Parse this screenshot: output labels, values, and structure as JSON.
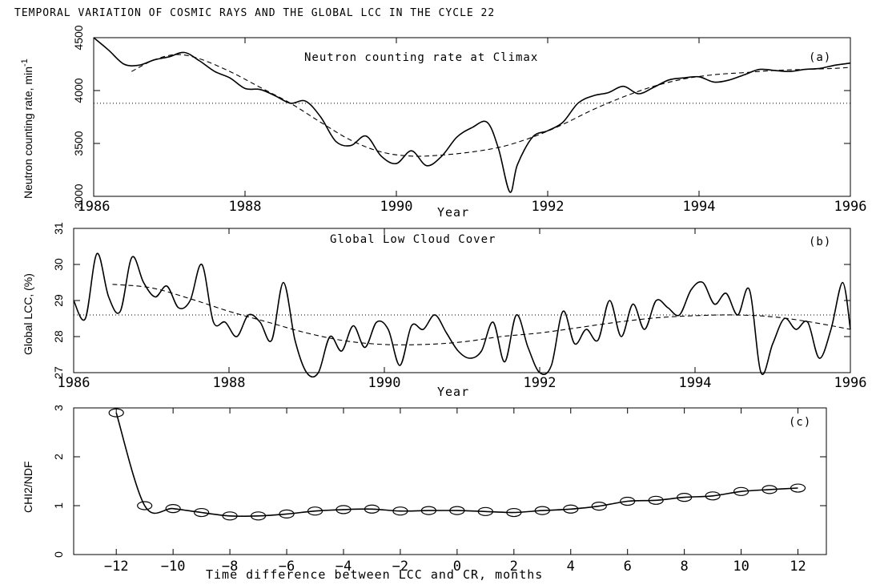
{
  "title": "TEMPORAL VARIATION OF COSMIC RAYS AND THE GLOBAL LCC IN THE CYCLE 22",
  "chart_data": [
    {
      "id": "a",
      "type": "line",
      "panel_label": "(a)",
      "annotation": "Neutron counting rate at Climax",
      "xlabel": "Year",
      "ylabel": "Neutron counting rate, min",
      "ylabel_sup": "-1",
      "xlim": [
        1986,
        1996
      ],
      "ylim": [
        3000,
        4500
      ],
      "xticks": [
        1986,
        1988,
        1990,
        1992,
        1994,
        1996
      ],
      "yticks": [
        3000,
        3500,
        4000,
        4500
      ],
      "reference_line": 3880,
      "series": [
        {
          "style": "solid",
          "x": [
            1986.0,
            1986.2,
            1986.4,
            1986.6,
            1986.8,
            1987.0,
            1987.2,
            1987.4,
            1987.6,
            1987.8,
            1988.0,
            1988.2,
            1988.4,
            1988.6,
            1988.8,
            1989.0,
            1989.2,
            1989.4,
            1989.6,
            1989.8,
            1990.0,
            1990.2,
            1990.4,
            1990.6,
            1990.8,
            1991.0,
            1991.2,
            1991.35,
            1991.5,
            1991.6,
            1991.8,
            1992.0,
            1992.2,
            1992.4,
            1992.6,
            1992.8,
            1993.0,
            1993.2,
            1993.4,
            1993.6,
            1993.8,
            1994.0,
            1994.2,
            1994.4,
            1994.6,
            1994.8,
            1995.0,
            1995.2,
            1995.4,
            1995.6,
            1995.8,
            1996.0
          ],
          "y": [
            4500,
            4380,
            4250,
            4240,
            4290,
            4320,
            4360,
            4280,
            4180,
            4120,
            4020,
            4010,
            3950,
            3880,
            3900,
            3750,
            3520,
            3480,
            3570,
            3380,
            3310,
            3430,
            3290,
            3380,
            3560,
            3650,
            3700,
            3450,
            3040,
            3300,
            3560,
            3620,
            3700,
            3880,
            3950,
            3980,
            4040,
            3970,
            4030,
            4100,
            4120,
            4130,
            4080,
            4100,
            4150,
            4200,
            4190,
            4180,
            4200,
            4210,
            4240,
            4260
          ]
        },
        {
          "style": "dashed",
          "x": [
            1986.5,
            1986.8,
            1987.1,
            1987.4,
            1987.8,
            1988.2,
            1988.6,
            1989.0,
            1989.4,
            1989.8,
            1990.2,
            1990.6,
            1991.0,
            1991.4,
            1991.8,
            1992.2,
            1992.6,
            1993.0,
            1993.4,
            1993.8,
            1994.2,
            1994.6,
            1995.0,
            1995.4,
            1995.8,
            1996.0
          ],
          "y": [
            4180,
            4290,
            4340,
            4300,
            4180,
            4030,
            3880,
            3700,
            3530,
            3420,
            3380,
            3390,
            3420,
            3470,
            3560,
            3680,
            3820,
            3940,
            4040,
            4110,
            4150,
            4170,
            4190,
            4200,
            4210,
            4220
          ]
        }
      ]
    },
    {
      "id": "b",
      "type": "line",
      "panel_label": "(b)",
      "annotation": "Global Low Cloud Cover",
      "xlabel": "Year",
      "ylabel": "Global LCC, (%)",
      "xlim": [
        1986,
        1996
      ],
      "ylim": [
        27,
        31
      ],
      "xticks": [
        1986,
        1988,
        1990,
        1992,
        1994,
        1996
      ],
      "yticks": [
        27,
        28,
        29,
        30,
        31
      ],
      "reference_line": 28.6,
      "series": [
        {
          "style": "solid",
          "x": [
            1986.0,
            1986.15,
            1986.3,
            1986.45,
            1986.6,
            1986.75,
            1986.9,
            1987.05,
            1987.2,
            1987.35,
            1987.5,
            1987.65,
            1987.8,
            1987.95,
            1988.1,
            1988.25,
            1988.4,
            1988.55,
            1988.7,
            1988.85,
            1989.0,
            1989.15,
            1989.3,
            1989.45,
            1989.6,
            1989.75,
            1989.9,
            1990.05,
            1990.2,
            1990.35,
            1990.5,
            1990.65,
            1990.8,
            1990.95,
            1991.1,
            1991.25,
            1991.4,
            1991.55,
            1991.7,
            1991.85,
            1992.0,
            1992.15,
            1992.3,
            1992.45,
            1992.6,
            1992.75,
            1992.9,
            1993.05,
            1993.2,
            1993.35,
            1993.5,
            1993.65,
            1993.8,
            1993.95,
            1994.1,
            1994.25,
            1994.4,
            1994.55,
            1994.7,
            1994.85,
            1995.0,
            1995.15,
            1995.3,
            1995.45,
            1995.6,
            1995.75,
            1995.9,
            1996.0
          ],
          "y": [
            29.0,
            28.5,
            30.3,
            29.1,
            28.7,
            30.2,
            29.5,
            29.1,
            29.4,
            28.8,
            29.0,
            30.0,
            28.4,
            28.4,
            28.0,
            28.6,
            28.4,
            27.9,
            29.5,
            27.9,
            27.0,
            26.7,
            28.0,
            27.6,
            28.3,
            27.7,
            28.4,
            28.2,
            27.2,
            28.3,
            28.2,
            28.6,
            28.1,
            27.6,
            27.4,
            27.6,
            28.4,
            27.3,
            28.6,
            27.7,
            27.0,
            27.2,
            28.7,
            27.8,
            28.2,
            27.9,
            29.0,
            28.0,
            28.9,
            28.2,
            29.0,
            28.8,
            28.6,
            29.3,
            29.5,
            28.9,
            29.2,
            28.6,
            29.3,
            27.0,
            27.8,
            28.5,
            28.2,
            28.4,
            27.4,
            28.2,
            29.5,
            28.2
          ]
        },
        {
          "style": "dashed",
          "x": [
            1986.5,
            1987.0,
            1987.5,
            1988.0,
            1988.5,
            1989.0,
            1989.5,
            1990.0,
            1990.5,
            1991.0,
            1991.5,
            1992.0,
            1992.5,
            1993.0,
            1993.5,
            1994.0,
            1994.5,
            1995.0,
            1995.5,
            1996.0
          ],
          "y": [
            29.45,
            29.35,
            29.05,
            28.7,
            28.4,
            28.1,
            27.88,
            27.78,
            27.78,
            27.85,
            28.0,
            28.1,
            28.25,
            28.4,
            28.52,
            28.58,
            28.6,
            28.55,
            28.4,
            28.2
          ]
        }
      ]
    },
    {
      "id": "c",
      "type": "scatter",
      "panel_label": "(c)",
      "xlabel": "Time difference between LCC and CR, months",
      "ylabel": "CHI2/NDF",
      "xlim": [
        -13.5,
        13
      ],
      "ylim": [
        0,
        3
      ],
      "xticks": [
        -12,
        -10,
        -8,
        -6,
        -4,
        -2,
        0,
        2,
        4,
        6,
        8,
        10,
        12
      ],
      "xtick_labels": [
        "−12",
        "−10",
        "−8",
        "−6",
        "−4",
        "−2",
        "0",
        "2",
        "4",
        "6",
        "8",
        "10",
        "12"
      ],
      "yticks": [
        0,
        1,
        2,
        3
      ],
      "series": [
        {
          "style": "points-with-curve",
          "x": [
            -12,
            -11,
            -10,
            -9,
            -8,
            -7,
            -6,
            -5,
            -4,
            -3,
            -2,
            -1,
            0,
            1,
            2,
            3,
            4,
            5,
            6,
            7,
            8,
            9,
            10,
            11,
            12
          ],
          "y": [
            2.9,
            1.0,
            0.94,
            0.86,
            0.79,
            0.79,
            0.83,
            0.89,
            0.92,
            0.93,
            0.89,
            0.9,
            0.9,
            0.88,
            0.86,
            0.9,
            0.93,
            0.99,
            1.09,
            1.11,
            1.17,
            1.2,
            1.29,
            1.33,
            1.36
          ]
        }
      ]
    }
  ]
}
